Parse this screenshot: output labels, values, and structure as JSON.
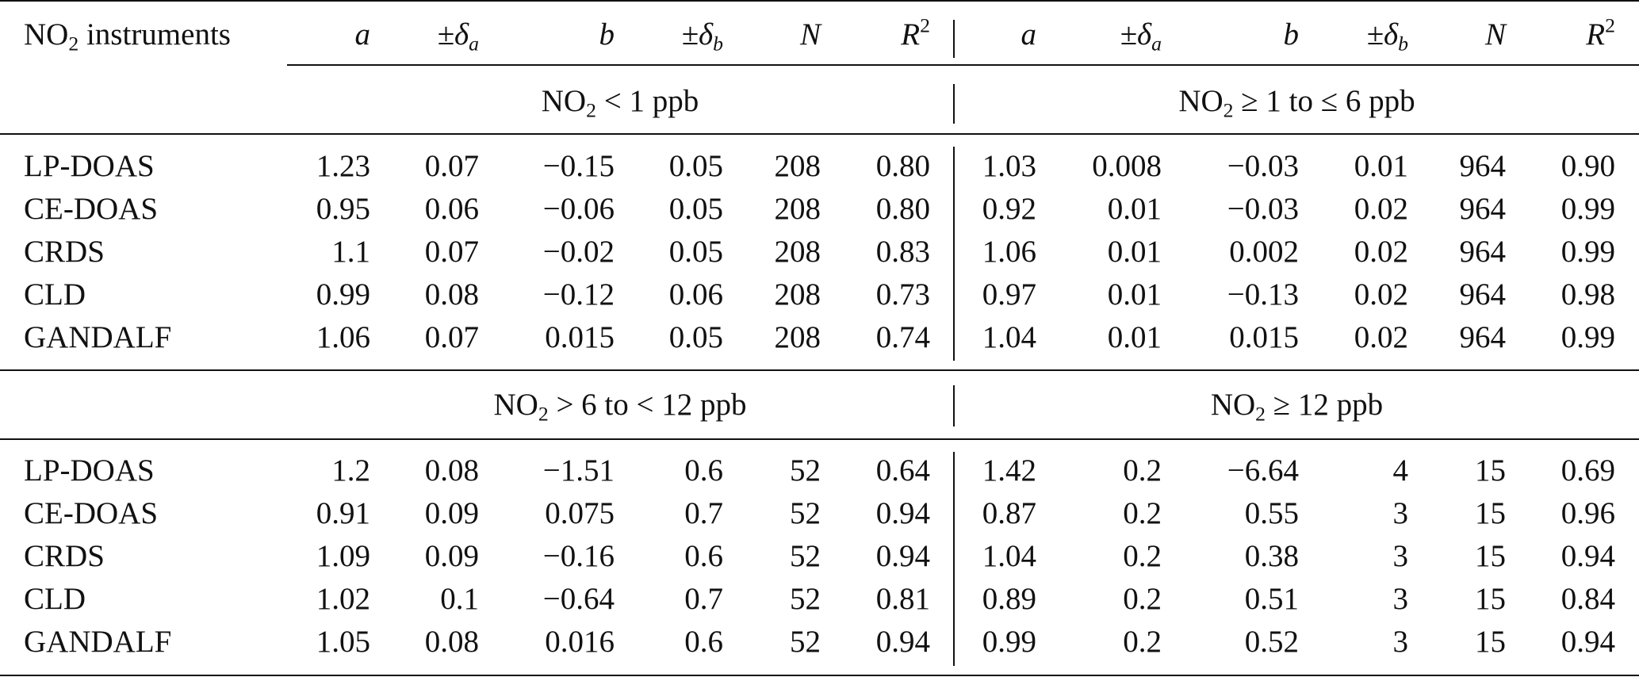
{
  "table": {
    "header": {
      "first_col_label": "NO",
      "first_col_sub": "2",
      "first_col_suffix": " instruments",
      "left": {
        "a": "a",
        "pm": "±δ",
        "da_sub": "a",
        "b": "b",
        "db_sub": "b",
        "n": "N",
        "r": "R",
        "r_sup": "2"
      },
      "right": {
        "a": "a",
        "pm": "±δ",
        "da_sub": "a",
        "b": "b",
        "db_sub": "b",
        "n": "N",
        "r": "R",
        "r_sup": "2"
      }
    },
    "blocks": [
      {
        "range_left": {
          "pre": "NO",
          "sub": "2",
          "post": " < 1 ppb"
        },
        "range_right": {
          "pre": "NO",
          "sub": "2",
          "post": " ≥ 1 to ≤ 6 ppb"
        },
        "rows": [
          {
            "instrument": "LP-DOAS",
            "left": [
              "1.23",
              "0.07",
              "−0.15",
              "0.05",
              "208",
              "0.80"
            ],
            "right": [
              "1.03",
              "0.008",
              "−0.03",
              "0.01",
              "964",
              "0.90"
            ]
          },
          {
            "instrument": "CE-DOAS",
            "left": [
              "0.95",
              "0.06",
              "−0.06",
              "0.05",
              "208",
              "0.80"
            ],
            "right": [
              "0.92",
              "0.01",
              "−0.03",
              "0.02",
              "964",
              "0.99"
            ]
          },
          {
            "instrument": "CRDS",
            "left": [
              "1.1",
              "0.07",
              "−0.02",
              "0.05",
              "208",
              "0.83"
            ],
            "right": [
              "1.06",
              "0.01",
              "0.002",
              "0.02",
              "964",
              "0.99"
            ]
          },
          {
            "instrument": "CLD",
            "left": [
              "0.99",
              "0.08",
              "−0.12",
              "0.06",
              "208",
              "0.73"
            ],
            "right": [
              "0.97",
              "0.01",
              "−0.13",
              "0.02",
              "964",
              "0.98"
            ]
          },
          {
            "instrument": "GANDALF",
            "left": [
              "1.06",
              "0.07",
              "0.015",
              "0.05",
              "208",
              "0.74"
            ],
            "right": [
              "1.04",
              "0.01",
              "0.015",
              "0.02",
              "964",
              "0.99"
            ]
          }
        ]
      },
      {
        "range_left": {
          "pre": "NO",
          "sub": "2",
          "post": " > 6 to < 12 ppb"
        },
        "range_right": {
          "pre": "NO",
          "sub": "2",
          "post": " ≥ 12 ppb"
        },
        "rows": [
          {
            "instrument": "LP-DOAS",
            "left": [
              "1.2",
              "0.08",
              "−1.51",
              "0.6",
              "52",
              "0.64"
            ],
            "right": [
              "1.42",
              "0.2",
              "−6.64",
              "4",
              "15",
              "0.69"
            ]
          },
          {
            "instrument": "CE-DOAS",
            "left": [
              "0.91",
              "0.09",
              "0.075",
              "0.7",
              "52",
              "0.94"
            ],
            "right": [
              "0.87",
              "0.2",
              "0.55",
              "3",
              "15",
              "0.96"
            ]
          },
          {
            "instrument": "CRDS",
            "left": [
              "1.09",
              "0.09",
              "−0.16",
              "0.6",
              "52",
              "0.94"
            ],
            "right": [
              "1.04",
              "0.2",
              "0.38",
              "3",
              "15",
              "0.94"
            ]
          },
          {
            "instrument": "CLD",
            "left": [
              "1.02",
              "0.1",
              "−0.64",
              "0.7",
              "52",
              "0.81"
            ],
            "right": [
              "0.89",
              "0.2",
              "0.51",
              "3",
              "15",
              "0.84"
            ]
          },
          {
            "instrument": "GANDALF",
            "left": [
              "1.05",
              "0.08",
              "0.016",
              "0.6",
              "52",
              "0.94"
            ],
            "right": [
              "0.99",
              "0.2",
              "0.52",
              "3",
              "15",
              "0.94"
            ]
          }
        ]
      }
    ]
  }
}
